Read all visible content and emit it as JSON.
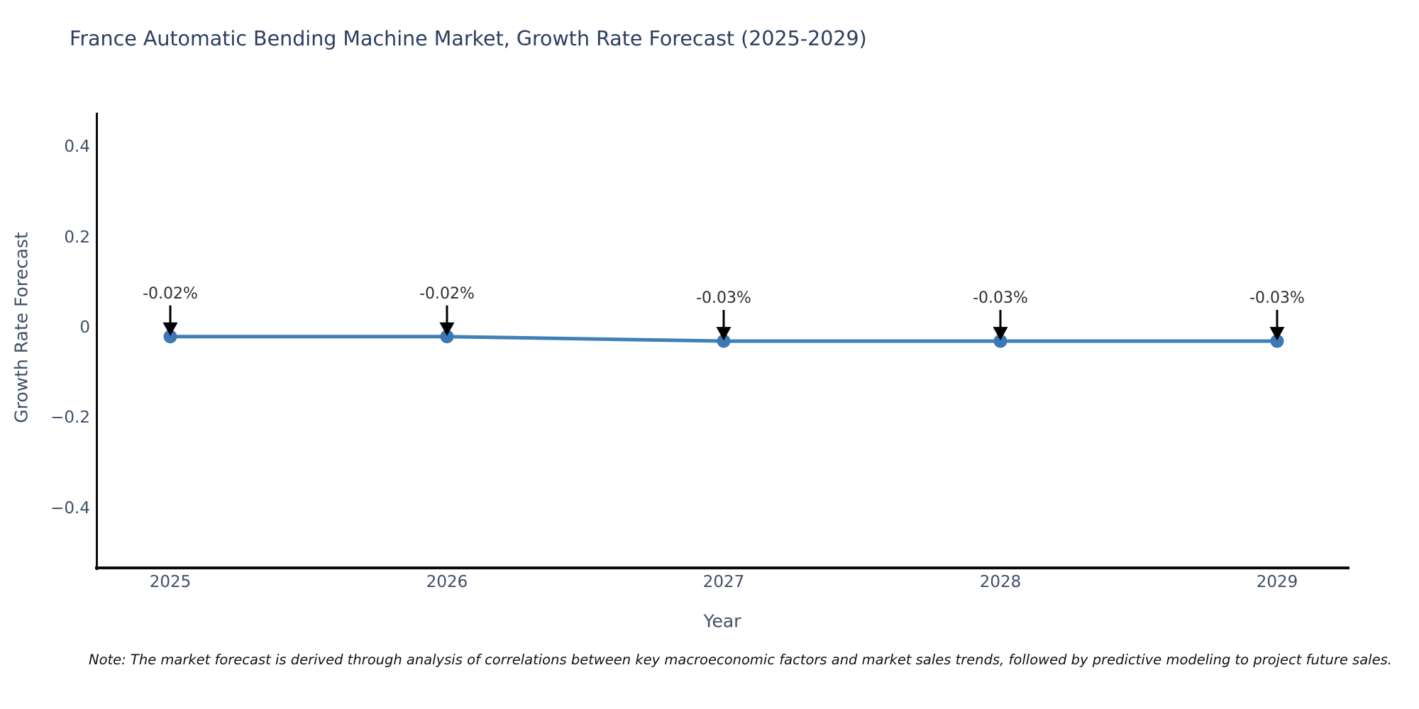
{
  "note": "Note: The market forecast is derived through analysis of correlations between key macroeconomic factors and market sales trends, followed by predictive modeling to project future sales.",
  "chart_data": {
    "type": "line",
    "title": "France Automatic Bending Machine Market, Growth Rate Forecast (2025-2029)",
    "xlabel": "Year",
    "ylabel": "Growth Rate Forecast",
    "x": [
      2025,
      2026,
      2027,
      2028,
      2029
    ],
    "values": [
      -0.02,
      -0.02,
      -0.03,
      -0.03,
      -0.03
    ],
    "point_labels": [
      "-0.02%",
      "-0.02%",
      "-0.03%",
      "-0.03%",
      "-0.03%"
    ],
    "yticks": [
      0.4,
      0.2,
      0,
      -0.2,
      -0.4
    ],
    "ytick_labels": [
      "0.4",
      "0.2",
      "0",
      "−0.2",
      "−0.4"
    ],
    "ylim": [
      -0.53,
      0.47
    ],
    "grid": false,
    "legend": "none",
    "line_color": "#4180b5",
    "marker_color": "#3b79b4",
    "arrow_color": "#000000"
  }
}
